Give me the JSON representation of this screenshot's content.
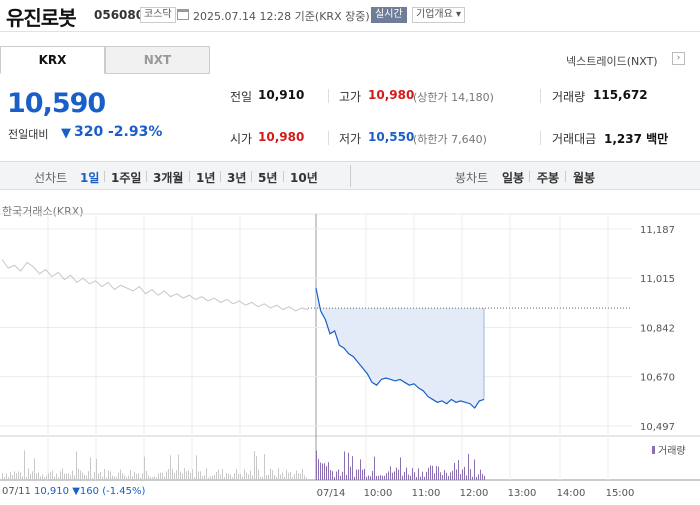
{
  "header": {
    "name": "유진로봇",
    "code": "056080",
    "market": "코스닥",
    "timestamp": "2025.07.14 12:28 기준(KRX 장중)",
    "live_label": "실시간",
    "company_info": "기업개요 ▾"
  },
  "tabs": {
    "krx": "KRX",
    "nxt": "NXT"
  },
  "nxt_link": "넥스트레이드(NXT)",
  "nxt_arrow": "›",
  "price": {
    "current": "10,590",
    "change_label": "전일대비",
    "change_arrow": "▼",
    "change": "320",
    "change_pct": "-2.93%"
  },
  "quote": {
    "prev_label": "전일",
    "prev": "10,910",
    "high_label": "고가",
    "high": "10,980",
    "upper_limit": "(상한가 14,180)",
    "volume_label": "거래량",
    "volume": "115,672",
    "open_label": "시가",
    "open": "10,980",
    "low_label": "저가",
    "low": "10,550",
    "lower_limit": "(하한가 7,640)",
    "amount_label": "거래대금",
    "amount": "1,237 백만"
  },
  "period_bar": {
    "line_label": "선차트",
    "line_periods": [
      "1일",
      "1주일",
      "3개월",
      "1년",
      "3년",
      "5년",
      "10년"
    ],
    "active": "1일",
    "candle_label": "봉차트",
    "candle_periods": [
      "일봉",
      "주봉",
      "월봉"
    ]
  },
  "colors": {
    "up": "#d51a1a",
    "down": "#1a5fc8",
    "area": "#e4ebf8",
    "prev_line": "#c7c7c7",
    "vol_prev": "#c8c8c8",
    "vol_today": "#8a6fb3"
  },
  "chart_data": {
    "type": "line",
    "source_label": "한국거래소(KRX)",
    "y_ticks": [
      11187,
      11015,
      10842,
      10670,
      10497
    ],
    "y_tick_labels": [
      "11,187",
      "11,015",
      "10,842",
      "10,670",
      "10,497"
    ],
    "ylim": [
      10497,
      11187
    ],
    "x_tick_labels": [
      "07/11",
      "07/14",
      "10:00",
      "11:00",
      "12:00",
      "13:00",
      "14:00",
      "15:00"
    ],
    "prev_close": 10910,
    "volume_label": "거래량",
    "series": [
      {
        "date": "07/11",
        "values": [
          11080,
          11050,
          11060,
          11040,
          11070,
          11055,
          11030,
          11045,
          11020,
          11035,
          11010,
          11025,
          11000,
          11015,
          10995,
          11005,
          10985,
          11000,
          10975,
          10990,
          10980,
          10970,
          10985,
          10960,
          10975,
          10955,
          10970,
          10950,
          10960,
          10945,
          10955,
          10940,
          10950,
          10935,
          10945,
          10930,
          10940,
          10925,
          10935,
          10920,
          10930,
          10915,
          10925,
          10910,
          10920,
          10905,
          10915,
          10900,
          10910,
          10905
        ]
      },
      {
        "date": "07/14",
        "values": [
          10980,
          10900,
          10870,
          10820,
          10830,
          10780,
          10770,
          10750,
          10740,
          10720,
          10700,
          10680,
          10650,
          10640,
          10660,
          10665,
          10660,
          10655,
          10660,
          10650,
          10640,
          10645,
          10630,
          10620,
          10600,
          10590,
          10580,
          10585,
          10575,
          10590,
          10580,
          10585,
          10580,
          10575,
          10560,
          10585,
          10590
        ]
      }
    ],
    "summary_prev": {
      "date": "07/11",
      "close": "10,910",
      "arrow": "▼",
      "change": "160",
      "pct": "(-1.45%)"
    }
  }
}
